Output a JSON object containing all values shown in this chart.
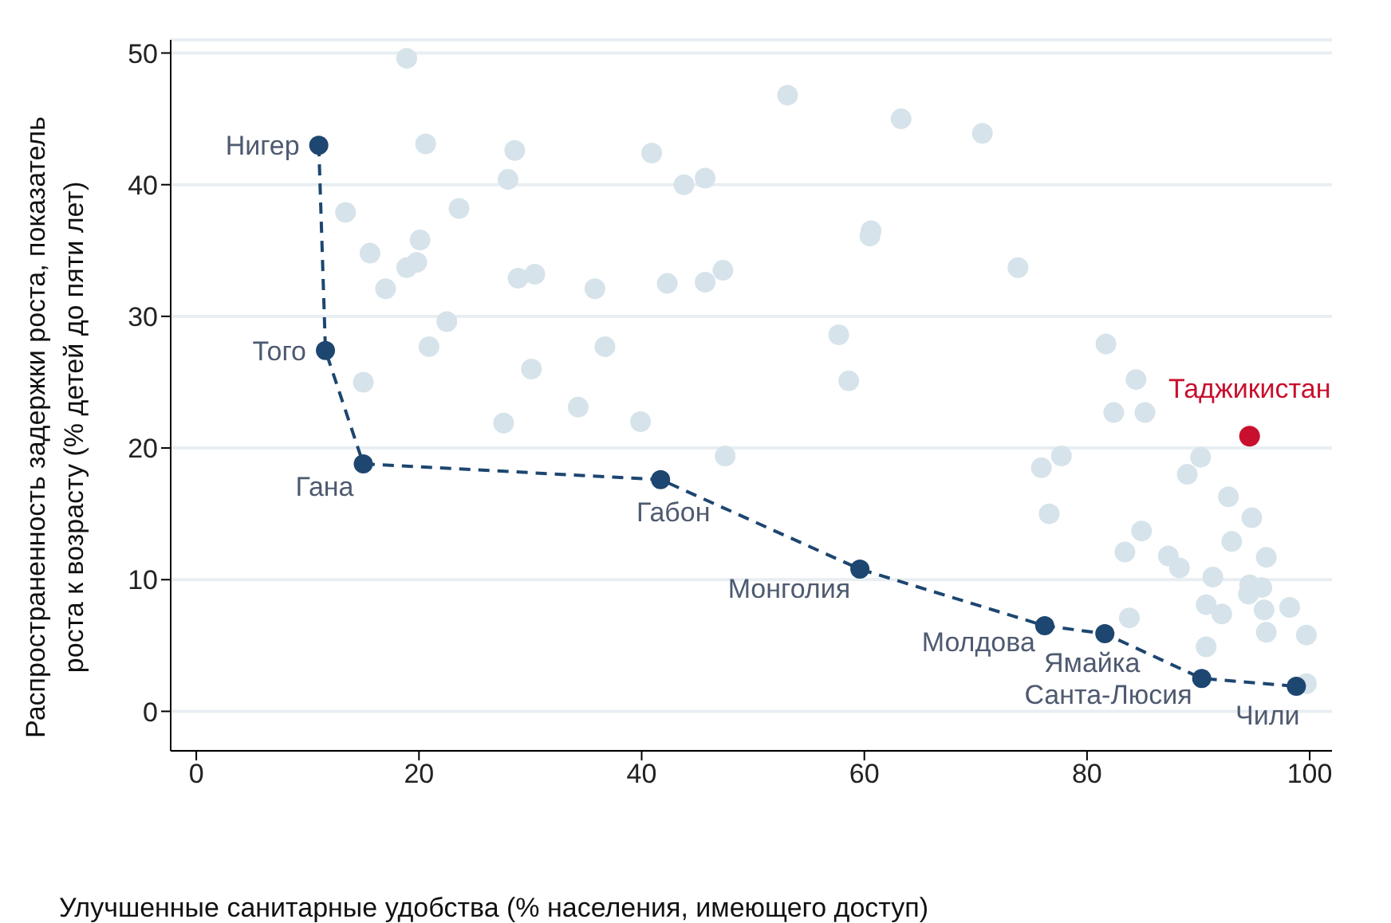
{
  "chart_data": {
    "type": "scatter",
    "xlabel": "Улучшенные санитарные удобства (% населения, имеющего доступ)",
    "ylabel": "Распространенность задержки роста, показатель роста к возрасту (% детей до пяти лет)",
    "xlim": [
      -2.3,
      102
    ],
    "xticks": [
      0,
      20,
      40,
      60,
      80,
      100
    ],
    "ylim": [
      -3,
      51
    ],
    "yticks": [
      0,
      10,
      20,
      30,
      40,
      50
    ],
    "grid": "y",
    "legend": false,
    "marker": "circle",
    "series": [
      {
        "type": "scatter",
        "color": "#d6e3ea",
        "x": [
          18.9,
          20.6,
          28.6,
          28.0,
          13.4,
          23.6,
          15.6,
          20.1,
          18.9,
          19.8,
          17.0,
          28.9,
          30.4,
          22.5,
          20.9,
          30.1,
          15.0,
          34.3,
          27.6,
          53.1,
          63.3,
          70.6,
          40.9,
          43.8,
          45.7,
          60.6,
          60.5,
          35.8,
          42.3,
          45.7,
          47.3,
          57.7,
          36.7,
          58.6,
          39.9,
          47.5,
          73.8,
          81.7,
          84.4,
          82.4,
          85.2,
          75.9,
          77.7,
          76.6,
          84.9,
          83.4,
          87.3,
          88.3,
          90.2,
          89.0,
          92.7,
          94.8,
          93.0,
          96.1,
          91.3,
          94.6,
          95.7,
          94.5,
          90.7,
          92.1,
          95.9,
          98.2,
          96.1,
          99.7,
          90.7,
          83.8,
          99.7
        ],
        "values": [
          49.6,
          43.1,
          42.6,
          40.4,
          37.9,
          38.2,
          34.8,
          35.8,
          33.7,
          34.1,
          32.1,
          32.9,
          33.2,
          29.6,
          27.7,
          26.0,
          25.0,
          23.1,
          21.9,
          46.8,
          45.0,
          43.9,
          42.4,
          40.0,
          40.5,
          36.5,
          36.1,
          32.1,
          32.5,
          32.6,
          33.5,
          28.6,
          27.7,
          25.1,
          22.0,
          19.4,
          33.7,
          27.9,
          25.2,
          22.7,
          22.7,
          18.5,
          19.4,
          15.0,
          13.7,
          12.1,
          11.8,
          10.9,
          19.3,
          18.0,
          16.3,
          14.7,
          12.9,
          11.7,
          10.2,
          9.6,
          9.4,
          8.9,
          8.1,
          7.4,
          7.7,
          7.9,
          6.0,
          5.8,
          4.9,
          7.1,
          2.1
        ]
      },
      {
        "type": "line",
        "color": "#1d4670",
        "line_style": "dashed",
        "marker": "circle",
        "x": [
          11.0,
          11.6,
          15.0,
          41.7,
          59.6,
          76.2,
          81.6,
          90.3,
          98.8
        ],
        "values": [
          43.0,
          27.4,
          18.8,
          17.6,
          10.8,
          6.5,
          5.9,
          2.5,
          1.9
        ]
      },
      {
        "type": "scatter",
        "color": "#c8102e",
        "x": [
          94.6
        ],
        "values": [
          20.9
        ]
      }
    ],
    "annotations": [
      {
        "text": "Нигер",
        "x": 11.0,
        "y": 43.0
      },
      {
        "text": "Того",
        "x": 11.6,
        "y": 27.4
      },
      {
        "text": "Гана",
        "x": 15.0,
        "y": 18.8
      },
      {
        "text": "Габон",
        "x": 41.7,
        "y": 17.6
      },
      {
        "text": "Монголия",
        "x": 59.6,
        "y": 10.8
      },
      {
        "text": "Молдова",
        "x": 76.2,
        "y": 6.5
      },
      {
        "text": "Ямайка",
        "x": 81.6,
        "y": 5.9
      },
      {
        "text": "Санта-Люсия",
        "x": 90.3,
        "y": 2.5
      },
      {
        "text": "Чили",
        "x": 98.8,
        "y": 1.9
      },
      {
        "text": "Таджикистан",
        "x": 94.6,
        "y": 20.9
      }
    ]
  }
}
